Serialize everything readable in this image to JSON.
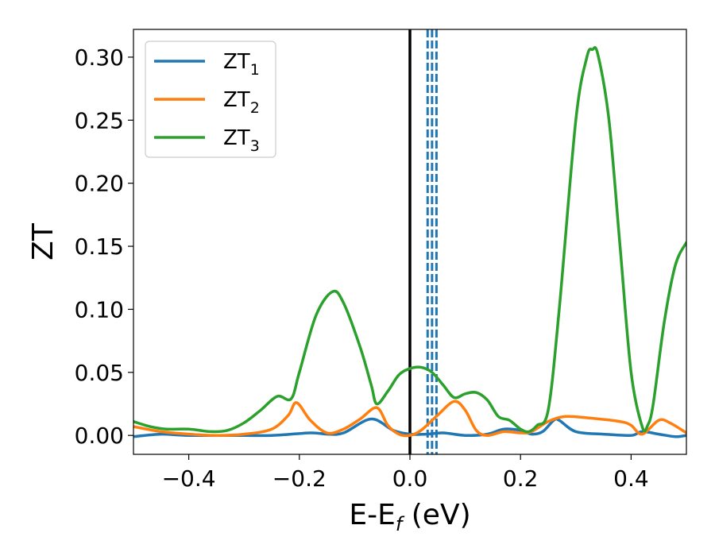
{
  "chart_data": {
    "type": "line",
    "title": "",
    "xlabel": "E-E",
    "xlabel_sub": "f",
    "xlabel_unit": " (eV)",
    "ylabel": "ZT",
    "xlim": [
      -0.5,
      0.5
    ],
    "ylim": [
      -0.015,
      0.322
    ],
    "grid": false,
    "legend_position": "top-left",
    "x_ticks": [
      -0.4,
      -0.2,
      0.0,
      0.2,
      0.4
    ],
    "x_tick_labels": [
      "−0.4",
      "−0.2",
      "0.0",
      "0.2",
      "0.4"
    ],
    "y_ticks": [
      0.0,
      0.05,
      0.1,
      0.15,
      0.2,
      0.25,
      0.3
    ],
    "y_tick_labels": [
      "0.00",
      "0.05",
      "0.10",
      "0.15",
      "0.20",
      "0.25",
      "0.30"
    ],
    "vertical_lines": [
      {
        "x": 0.0,
        "color": "#000000",
        "style": "solid"
      },
      {
        "x": 0.032,
        "color": "#1f77b4",
        "style": "dashed"
      },
      {
        "x": 0.04,
        "color": "#1f77b4",
        "style": "dashed"
      },
      {
        "x": 0.048,
        "color": "#1f77b4",
        "style": "dashed"
      }
    ],
    "series": [
      {
        "name": "ZT",
        "name_sub": "1",
        "color": "#1f77b4",
        "points": [
          [
            -0.5,
            -0.001
          ],
          [
            -0.45,
            0.001
          ],
          [
            -0.4,
            0.0
          ],
          [
            -0.3,
            0.0
          ],
          [
            -0.25,
            0.0
          ],
          [
            -0.18,
            0.002
          ],
          [
            -0.15,
            0.001
          ],
          [
            -0.12,
            0.002
          ],
          [
            -0.07,
            0.013
          ],
          [
            -0.03,
            0.004
          ],
          [
            0.0,
            0.001
          ],
          [
            0.03,
            0.001
          ],
          [
            0.06,
            0.002
          ],
          [
            0.1,
            0.0
          ],
          [
            0.14,
            0.001
          ],
          [
            0.17,
            0.005
          ],
          [
            0.2,
            0.004
          ],
          [
            0.22,
            0.001
          ],
          [
            0.24,
            0.003
          ],
          [
            0.26,
            0.012
          ],
          [
            0.27,
            0.012
          ],
          [
            0.3,
            0.003
          ],
          [
            0.35,
            0.001
          ],
          [
            0.4,
            0.0
          ],
          [
            0.42,
            0.003
          ],
          [
            0.45,
            0.001
          ],
          [
            0.48,
            -0.001
          ],
          [
            0.5,
            0.0
          ]
        ]
      },
      {
        "name": "ZT",
        "name_sub": "2",
        "color": "#ff7f0e",
        "points": [
          [
            -0.5,
            0.007
          ],
          [
            -0.45,
            0.003
          ],
          [
            -0.4,
            0.001
          ],
          [
            -0.35,
            0.0
          ],
          [
            -0.3,
            0.001
          ],
          [
            -0.25,
            0.005
          ],
          [
            -0.22,
            0.016
          ],
          [
            -0.205,
            0.026
          ],
          [
            -0.18,
            0.012
          ],
          [
            -0.15,
            0.002
          ],
          [
            -0.12,
            0.005
          ],
          [
            -0.09,
            0.013
          ],
          [
            -0.06,
            0.022
          ],
          [
            -0.04,
            0.008
          ],
          [
            -0.02,
            0.001
          ],
          [
            0.0,
            0.0
          ],
          [
            0.02,
            0.004
          ],
          [
            0.05,
            0.016
          ],
          [
            0.08,
            0.027
          ],
          [
            0.1,
            0.02
          ],
          [
            0.12,
            0.004
          ],
          [
            0.14,
            0.0
          ],
          [
            0.17,
            0.003
          ],
          [
            0.2,
            0.002
          ],
          [
            0.22,
            0.003
          ],
          [
            0.25,
            0.011
          ],
          [
            0.28,
            0.015
          ],
          [
            0.32,
            0.014
          ],
          [
            0.38,
            0.011
          ],
          [
            0.4,
            0.008
          ],
          [
            0.42,
            0.001
          ],
          [
            0.45,
            0.012
          ],
          [
            0.47,
            0.01
          ],
          [
            0.5,
            0.002
          ]
        ]
      },
      {
        "name": "ZT",
        "name_sub": "3",
        "color": "#2ca02c",
        "points": [
          [
            -0.5,
            0.011
          ],
          [
            -0.47,
            0.007
          ],
          [
            -0.44,
            0.005
          ],
          [
            -0.4,
            0.005
          ],
          [
            -0.36,
            0.003
          ],
          [
            -0.33,
            0.004
          ],
          [
            -0.3,
            0.01
          ],
          [
            -0.27,
            0.02
          ],
          [
            -0.24,
            0.031
          ],
          [
            -0.215,
            0.029
          ],
          [
            -0.2,
            0.05
          ],
          [
            -0.17,
            0.095
          ],
          [
            -0.14,
            0.114
          ],
          [
            -0.12,
            0.105
          ],
          [
            -0.09,
            0.07
          ],
          [
            -0.07,
            0.04
          ],
          [
            -0.06,
            0.025
          ],
          [
            -0.04,
            0.035
          ],
          [
            -0.02,
            0.048
          ],
          [
            0.0,
            0.053
          ],
          [
            0.02,
            0.054
          ],
          [
            0.04,
            0.05
          ],
          [
            0.06,
            0.04
          ],
          [
            0.08,
            0.03
          ],
          [
            0.1,
            0.033
          ],
          [
            0.12,
            0.034
          ],
          [
            0.14,
            0.028
          ],
          [
            0.16,
            0.015
          ],
          [
            0.18,
            0.012
          ],
          [
            0.2,
            0.005
          ],
          [
            0.215,
            0.003
          ],
          [
            0.23,
            0.008
          ],
          [
            0.25,
            0.02
          ],
          [
            0.27,
            0.1
          ],
          [
            0.3,
            0.25
          ],
          [
            0.32,
            0.3
          ],
          [
            0.33,
            0.306
          ],
          [
            0.34,
            0.302
          ],
          [
            0.36,
            0.25
          ],
          [
            0.38,
            0.15
          ],
          [
            0.4,
            0.05
          ],
          [
            0.42,
            0.007
          ],
          [
            0.43,
            0.008
          ],
          [
            0.44,
            0.025
          ],
          [
            0.46,
            0.09
          ],
          [
            0.48,
            0.135
          ],
          [
            0.5,
            0.153
          ]
        ]
      }
    ]
  }
}
